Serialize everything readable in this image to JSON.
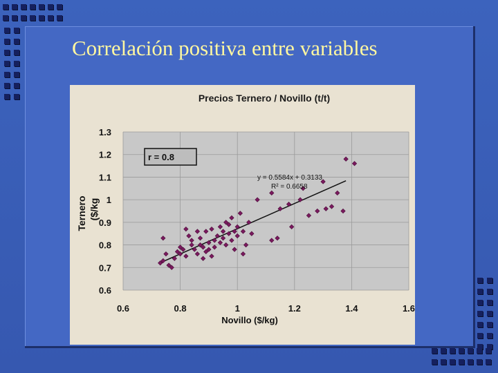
{
  "slide": {
    "title": "Correlación positiva entre variables"
  },
  "chart_data": {
    "type": "scatter",
    "title": "Precios Ternero / Novillo (t/t)",
    "xlabel": "Novillo ($/kg)",
    "ylabel_line1": "Ternero",
    "ylabel_line2": "($/kg",
    "xlim": [
      0.6,
      1.6
    ],
    "ylim": [
      0.6,
      1.3
    ],
    "xticks": [
      "0.6",
      "0.8",
      "1",
      "1.2",
      "1.4",
      "1.6"
    ],
    "yticks": [
      "0.6",
      "0.7",
      "0.8",
      "0.9",
      "1",
      "1.1",
      "1.2",
      "1.3"
    ],
    "grid": true,
    "r_label": "r = 0.8",
    "equation": "y = 0.5584x + 0.3133",
    "r_squared": "R² = 0.6658",
    "trendline": {
      "slope": 0.5584,
      "intercept": 0.3133,
      "x_range": [
        0.73,
        1.38
      ]
    },
    "series": [
      {
        "marker_color": "#7a1a5e",
        "points": [
          [
            0.73,
            0.72
          ],
          [
            0.74,
            0.73
          ],
          [
            0.75,
            0.76
          ],
          [
            0.76,
            0.71
          ],
          [
            0.77,
            0.7
          ],
          [
            0.78,
            0.74
          ],
          [
            0.79,
            0.77
          ],
          [
            0.8,
            0.76
          ],
          [
            0.8,
            0.79
          ],
          [
            0.81,
            0.78
          ],
          [
            0.82,
            0.75
          ],
          [
            0.82,
            0.87
          ],
          [
            0.83,
            0.84
          ],
          [
            0.84,
            0.82
          ],
          [
            0.84,
            0.8
          ],
          [
            0.85,
            0.78
          ],
          [
            0.86,
            0.86
          ],
          [
            0.86,
            0.76
          ],
          [
            0.87,
            0.83
          ],
          [
            0.87,
            0.8
          ],
          [
            0.88,
            0.79
          ],
          [
            0.88,
            0.74
          ],
          [
            0.89,
            0.77
          ],
          [
            0.89,
            0.86
          ],
          [
            0.9,
            0.81
          ],
          [
            0.9,
            0.78
          ],
          [
            0.91,
            0.87
          ],
          [
            0.91,
            0.75
          ],
          [
            0.92,
            0.82
          ],
          [
            0.92,
            0.79
          ],
          [
            0.93,
            0.84
          ],
          [
            0.94,
            0.81
          ],
          [
            0.94,
            0.88
          ],
          [
            0.95,
            0.86
          ],
          [
            0.95,
            0.83
          ],
          [
            0.96,
            0.8
          ],
          [
            0.96,
            0.9
          ],
          [
            0.97,
            0.85
          ],
          [
            0.97,
            0.89
          ],
          [
            0.98,
            0.92
          ],
          [
            0.98,
            0.82
          ],
          [
            0.99,
            0.86
          ],
          [
            0.99,
            0.78
          ],
          [
            1.0,
            0.84
          ],
          [
            1.0,
            0.88
          ],
          [
            1.01,
            0.94
          ],
          [
            1.02,
            0.86
          ],
          [
            1.02,
            0.76
          ],
          [
            1.03,
            0.8
          ],
          [
            1.04,
            0.9
          ],
          [
            1.05,
            0.85
          ],
          [
            1.07,
            1.0
          ],
          [
            1.12,
            1.03
          ],
          [
            1.15,
            0.96
          ],
          [
            1.18,
            0.98
          ],
          [
            1.22,
            1.0
          ],
          [
            1.23,
            1.05
          ],
          [
            1.25,
            0.93
          ],
          [
            1.28,
            0.95
          ],
          [
            1.3,
            1.08
          ],
          [
            1.31,
            0.96
          ],
          [
            1.33,
            0.97
          ],
          [
            1.35,
            1.03
          ],
          [
            1.37,
            0.95
          ],
          [
            1.41,
            1.16
          ],
          [
            1.38,
            1.18
          ],
          [
            1.12,
            0.82
          ],
          [
            1.14,
            0.83
          ],
          [
            1.19,
            0.88
          ],
          [
            0.74,
            0.83
          ]
        ]
      }
    ]
  }
}
